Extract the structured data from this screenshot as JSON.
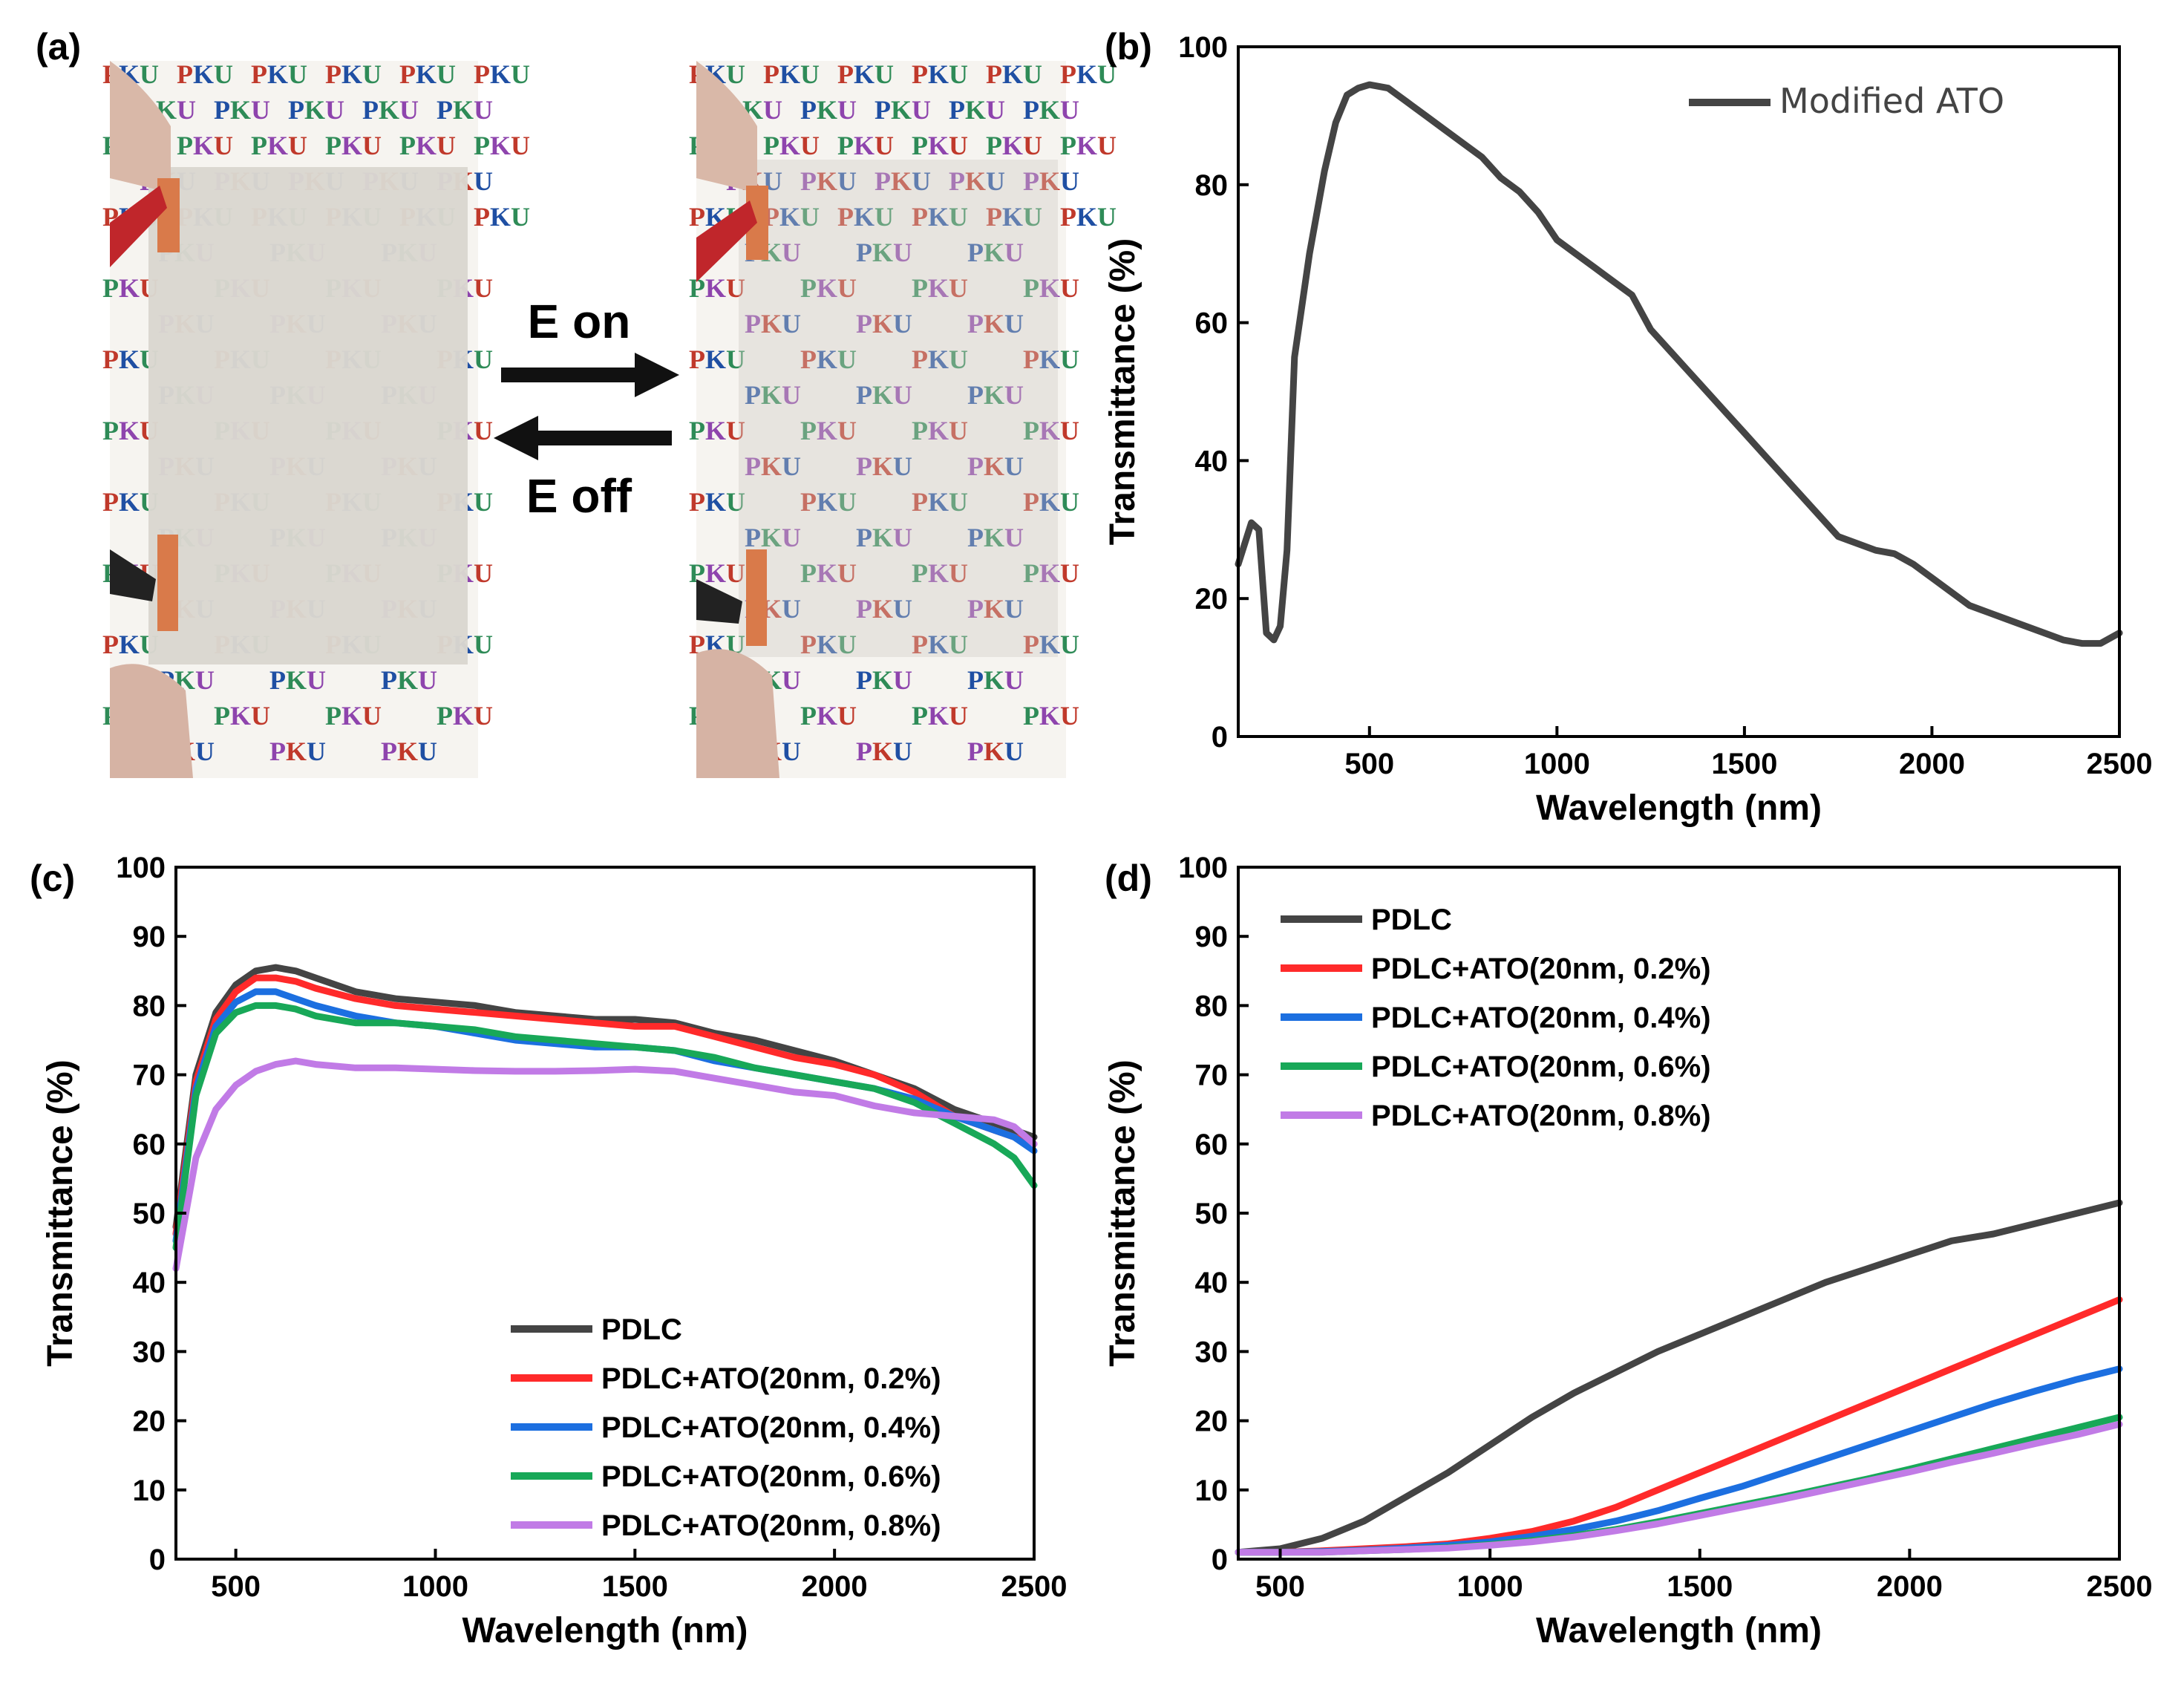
{
  "figure": {
    "panel_labels": [
      "(a)",
      "(b)",
      "(c)",
      "(d)"
    ],
    "photo": {
      "switch_on_label": "E on",
      "switch_off_label": "E off",
      "background_text": "PKU",
      "pku_colors": [
        "#c0392b",
        "#1f4fa3",
        "#2e8b57",
        "#8e44ad"
      ]
    }
  },
  "chart_data": [
    {
      "id": "b",
      "type": "line",
      "title": "",
      "xlabel": "Wavelength (nm)",
      "ylabel": "Transmittance (%)",
      "xlim": [
        150,
        2500
      ],
      "ylim": [
        0,
        100
      ],
      "xticks": [
        500,
        1000,
        1500,
        2000,
        2500
      ],
      "yticks": [
        0,
        20,
        40,
        60,
        80,
        100
      ],
      "legend_position": "top-right",
      "series": [
        {
          "name": "Modified ATO",
          "color": "#444444",
          "x": [
            150,
            185,
            205,
            225,
            245,
            262,
            280,
            300,
            340,
            380,
            410,
            440,
            470,
            500,
            550,
            600,
            650,
            700,
            750,
            800,
            850,
            900,
            950,
            1000,
            1050,
            1100,
            1150,
            1200,
            1250,
            1300,
            1350,
            1400,
            1450,
            1500,
            1550,
            1600,
            1650,
            1700,
            1750,
            1800,
            1850,
            1900,
            1950,
            2000,
            2050,
            2100,
            2150,
            2200,
            2250,
            2300,
            2350,
            2400,
            2450,
            2500
          ],
          "y": [
            25,
            31,
            30,
            15,
            14,
            16,
            27,
            55,
            70,
            82,
            89,
            93,
            94,
            94.5,
            94,
            92,
            90,
            88,
            86,
            84,
            81,
            79,
            76,
            72,
            70,
            68,
            66,
            64,
            59,
            56,
            53,
            50,
            47,
            44,
            41,
            38,
            35,
            32,
            29,
            28,
            27,
            26.5,
            25,
            23,
            21,
            19,
            18,
            17,
            16,
            15,
            14,
            13.5,
            13.5,
            15
          ]
        }
      ]
    },
    {
      "id": "c",
      "type": "line",
      "title": "",
      "xlabel": "Wavelength (nm)",
      "ylabel": "Transmittance (%)",
      "xlim": [
        350,
        2500
      ],
      "ylim": [
        0,
        100
      ],
      "xticks": [
        500,
        1000,
        1500,
        2000,
        2500
      ],
      "yticks": [
        0,
        10,
        20,
        30,
        40,
        50,
        60,
        70,
        80,
        90,
        100
      ],
      "legend_position": "bottom-right",
      "x": [
        350,
        400,
        450,
        500,
        550,
        600,
        650,
        700,
        800,
        900,
        1000,
        1100,
        1200,
        1300,
        1400,
        1500,
        1600,
        1700,
        1800,
        1900,
        2000,
        2100,
        2200,
        2300,
        2400,
        2450,
        2500
      ],
      "series": [
        {
          "name": "PDLC",
          "color": "#444444",
          "values": [
            48,
            70,
            79,
            83,
            85,
            85.5,
            85,
            84,
            82,
            81,
            80.5,
            80,
            79,
            78.5,
            78,
            78,
            77.5,
            76,
            75,
            73.5,
            72,
            70,
            68,
            65,
            63,
            62,
            61
          ]
        },
        {
          "name": "PDLC+ATO(20nm, 0.2%)",
          "color": "#ff2a2a",
          "values": [
            47,
            69,
            78,
            82,
            84,
            84,
            83.5,
            82.5,
            81,
            80,
            79.5,
            79,
            78.5,
            78,
            77.5,
            77,
            77,
            75.5,
            74,
            72.5,
            71.5,
            70,
            67.5,
            64,
            62,
            61,
            60
          ]
        },
        {
          "name": "PDLC+ATO(20nm, 0.4%)",
          "color": "#1c6fe0",
          "values": [
            46,
            68,
            77,
            80.5,
            82,
            82,
            81,
            80,
            78.5,
            77.5,
            77,
            76,
            75,
            74.5,
            74,
            74,
            73.5,
            72,
            71,
            70,
            69,
            68,
            66.5,
            64,
            62,
            61,
            59
          ]
        },
        {
          "name": "PDLC+ATO(20nm, 0.6%)",
          "color": "#18a858",
          "values": [
            45,
            67,
            76,
            79,
            80,
            80,
            79.5,
            78.5,
            77.5,
            77.5,
            77,
            76.5,
            75.5,
            75,
            74.5,
            74,
            73.5,
            72.5,
            71,
            70,
            69,
            68,
            66,
            63,
            60,
            58,
            54
          ]
        },
        {
          "name": "PDLC+ATO(20nm, 0.8%)",
          "color": "#c17be6",
          "values": [
            42,
            58,
            65,
            68.5,
            70.5,
            71.5,
            72,
            71.5,
            71,
            71,
            70.8,
            70.6,
            70.5,
            70.5,
            70.6,
            70.8,
            70.5,
            69.5,
            68.5,
            67.5,
            67,
            65.5,
            64.5,
            64,
            63.5,
            62.5,
            60
          ]
        }
      ]
    },
    {
      "id": "d",
      "type": "line",
      "title": "",
      "xlabel": "Wavelength (nm)",
      "ylabel": "Transmittance (%)",
      "xlim": [
        400,
        2500
      ],
      "ylim": [
        0,
        100
      ],
      "xticks": [
        500,
        1000,
        1500,
        2000,
        2500
      ],
      "yticks": [
        0,
        10,
        20,
        30,
        40,
        50,
        60,
        70,
        80,
        90,
        100
      ],
      "legend_position": "top-left",
      "x": [
        400,
        500,
        600,
        700,
        800,
        900,
        1000,
        1100,
        1200,
        1300,
        1400,
        1500,
        1600,
        1700,
        1800,
        1900,
        2000,
        2100,
        2200,
        2300,
        2400,
        2500
      ],
      "series": [
        {
          "name": "PDLC",
          "color": "#444444",
          "values": [
            1,
            1.5,
            3,
            5.5,
            9,
            12.5,
            16.5,
            20.5,
            24,
            27,
            30,
            32.5,
            35,
            37.5,
            40,
            42,
            44,
            46,
            47,
            48.5,
            50,
            51.5
          ]
        },
        {
          "name": "PDLC+ATO(20nm, 0.2%)",
          "color": "#ff2a2a",
          "values": [
            1,
            1,
            1.2,
            1.5,
            1.8,
            2.2,
            3,
            4,
            5.5,
            7.5,
            10,
            12.5,
            15,
            17.5,
            20,
            22.5,
            25,
            27.5,
            30,
            32.5,
            35,
            37.5
          ]
        },
        {
          "name": "PDLC+ATO(20nm, 0.4%)",
          "color": "#1c6fe0",
          "values": [
            1,
            1,
            1.1,
            1.3,
            1.6,
            2,
            2.5,
            3.3,
            4.3,
            5.5,
            7,
            8.8,
            10.5,
            12.5,
            14.5,
            16.5,
            18.5,
            20.5,
            22.5,
            24.3,
            26,
            27.5
          ]
        },
        {
          "name": "PDLC+ATO(20nm, 0.6%)",
          "color": "#18a858",
          "values": [
            1,
            1,
            1,
            1.2,
            1.4,
            1.7,
            2.1,
            2.7,
            3.4,
            4.3,
            5.4,
            6.6,
            7.8,
            9,
            10.3,
            11.6,
            13,
            14.5,
            16,
            17.5,
            19,
            20.5
          ]
        },
        {
          "name": "PDLC+ATO(20nm, 0.8%)",
          "color": "#c17be6",
          "values": [
            1,
            1,
            1,
            1.2,
            1.4,
            1.6,
            2,
            2.5,
            3.2,
            4.1,
            5.1,
            6.3,
            7.5,
            8.7,
            10,
            11.3,
            12.6,
            14,
            15.3,
            16.7,
            18,
            19.5
          ]
        }
      ]
    }
  ]
}
